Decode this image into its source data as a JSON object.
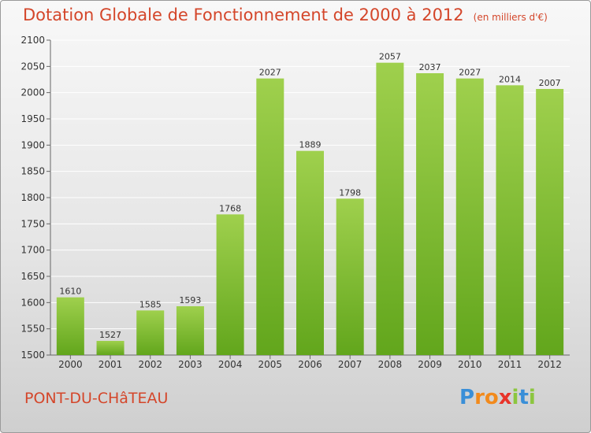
{
  "title": "Dotation Globale de Fonctionnement de 2000 à 2012",
  "subtitle": "(en milliers d'€)",
  "commune": "PONT-DU-CHâTEAU",
  "logo": {
    "text": "Proxiti",
    "letters": [
      "P",
      "r",
      "o",
      "x",
      "i",
      "t",
      "i"
    ],
    "colors": [
      "#3a8fd8",
      "#f28a1c",
      "#f28a1c",
      "#e8342a",
      "#8cc63f",
      "#3a8fd8",
      "#8cc63f"
    ]
  },
  "colors": {
    "bar_top": "#9fd04d",
    "bar_bottom": "#62a61c",
    "title": "#d4462a"
  },
  "chart_data": {
    "type": "bar",
    "categories": [
      "2000",
      "2001",
      "2002",
      "2003",
      "2004",
      "2005",
      "2006",
      "2007",
      "2008",
      "2009",
      "2010",
      "2011",
      "2012"
    ],
    "values": [
      1610,
      1527,
      1585,
      1593,
      1768,
      2027,
      1889,
      1798,
      2057,
      2037,
      2027,
      2014,
      2007
    ],
    "ylim": [
      1500,
      2100
    ],
    "yticks": [
      1500,
      1550,
      1600,
      1650,
      1700,
      1750,
      1800,
      1850,
      1900,
      1950,
      2000,
      2050,
      2100
    ],
    "grid": true,
    "xlabel": "",
    "ylabel": ""
  }
}
